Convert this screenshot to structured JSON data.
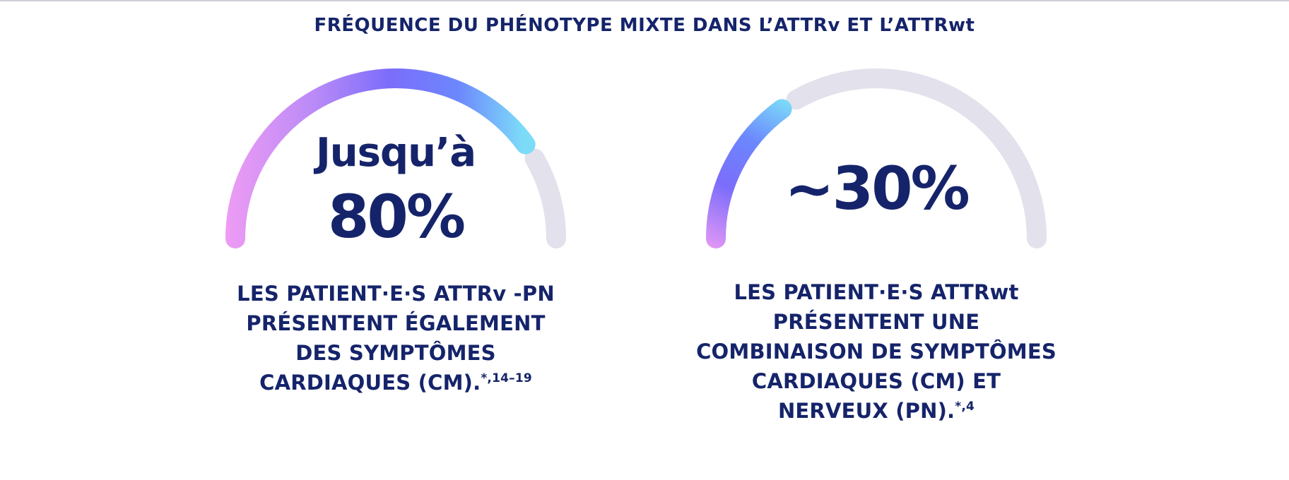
{
  "page": {
    "title": "FRÉQUENCE DU PHÉNOTYPE MIXTE DANS L’ATTRv ET L’ATTRwt"
  },
  "colors": {
    "text": "#15246a",
    "track": "#e2e1ec",
    "gradient": [
      "#ee9cf4",
      "#b98af7",
      "#7b6dfb",
      "#6c87fd",
      "#7cdcf8"
    ]
  },
  "chart_data": [
    {
      "type": "gauge",
      "label_prefix": "Jusqu’à",
      "value_label": "80%",
      "value": 80,
      "max": 100,
      "description_lines": [
        "LES PATIENT·E·S ATTRv -PN",
        "PRÉSENTENT ÉGALEMENT",
        "DES SYMPTÔMES",
        "CARDIAQUES (CM)."
      ],
      "footnote": "*,14–19"
    },
    {
      "type": "gauge",
      "label_prefix": "",
      "value_label": "~30%",
      "value": 30,
      "max": 100,
      "description_lines": [
        "LES PATIENT·E·S ATTRwt",
        "PRÉSENTENT UNE",
        "COMBINAISON DE SYMPTÔMES",
        "CARDIAQUES (CM) ET",
        "NERVEUX (PN)."
      ],
      "footnote": "*,4"
    }
  ]
}
